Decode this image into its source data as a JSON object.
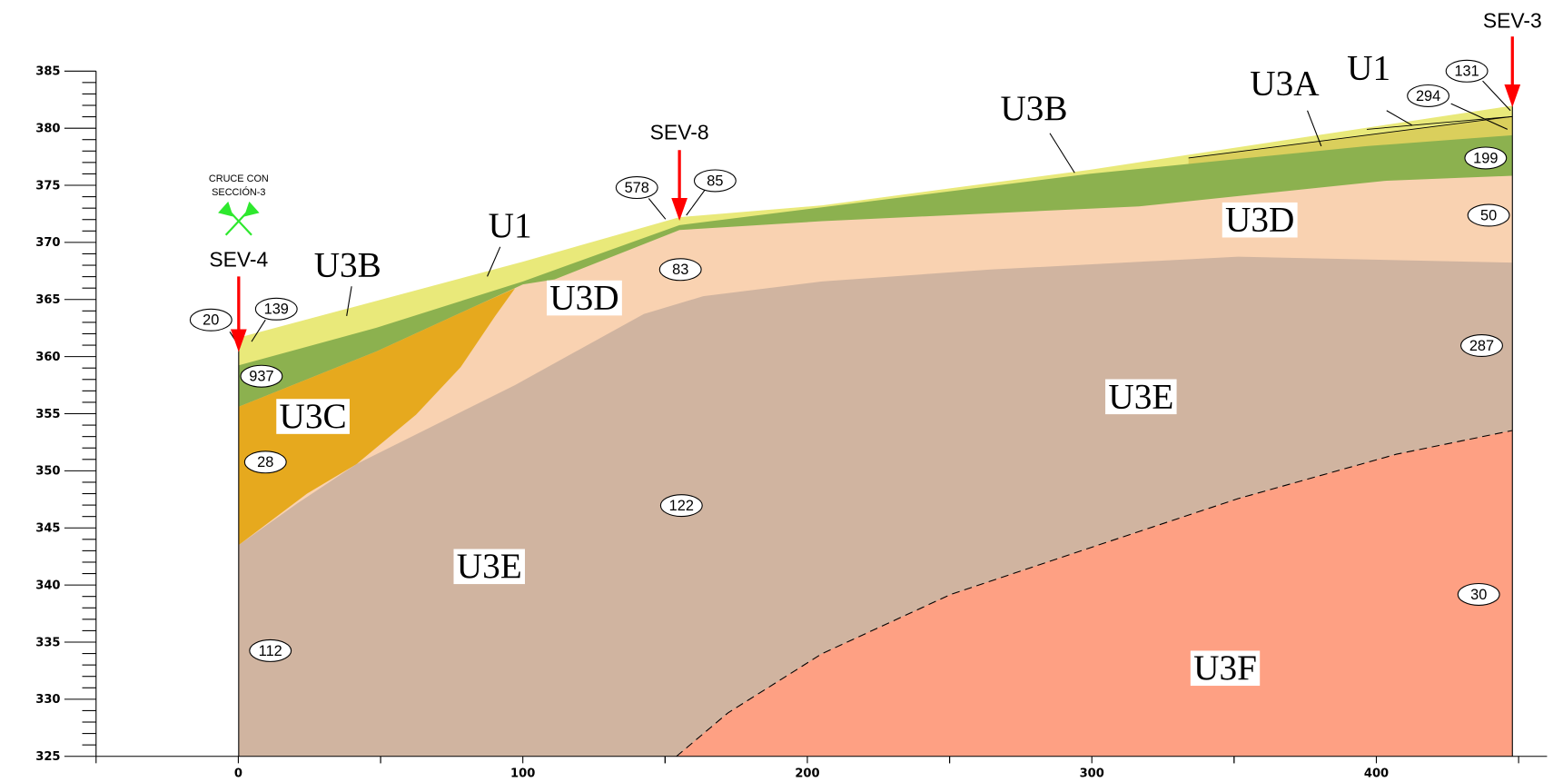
{
  "axes": {
    "xlim": [
      -50,
      460
    ],
    "ylim": [
      325,
      385
    ],
    "xticks": [
      0,
      100,
      200,
      300,
      400
    ],
    "yticks": [
      325,
      330,
      335,
      340,
      345,
      350,
      355,
      360,
      365,
      370,
      375,
      380,
      385
    ]
  },
  "units": [
    "U1",
    "U3B",
    "U3D",
    "U3C",
    "U3E",
    "U3E",
    "U3F",
    "U3B",
    "U3A",
    "U1",
    "U3D"
  ],
  "resistivities": [
    "20",
    "139",
    "937",
    "28",
    "112",
    "578",
    "85",
    "83",
    "122",
    "131",
    "294",
    "199",
    "50",
    "287",
    "30"
  ],
  "soundings": [
    "SEV-4",
    "SEV-8",
    "SEV-3"
  ],
  "annotation": [
    "CRUCE CON",
    "SECCIÓN-3"
  ]
}
